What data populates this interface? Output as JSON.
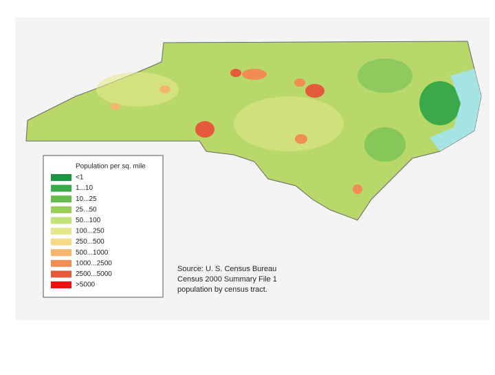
{
  "legend": {
    "title": "Population per sq. mile",
    "items": [
      {
        "label": "<1",
        "color": "#1a9641"
      },
      {
        "label": "1...10",
        "color": "#3aa94a"
      },
      {
        "label": "10...25",
        "color": "#66bd4f"
      },
      {
        "label": "25...50",
        "color": "#97cf57"
      },
      {
        "label": "50...100",
        "color": "#c4e27a"
      },
      {
        "label": "100...250",
        "color": "#e6e88e"
      },
      {
        "label": "250...500",
        "color": "#f7d98a"
      },
      {
        "label": "500...1000",
        "color": "#f6b46c"
      },
      {
        "label": "1000...2500",
        "color": "#f08c54"
      },
      {
        "label": "2500...5000",
        "color": "#e45a3a"
      },
      {
        "label": ">5000",
        "color": "#f01010"
      }
    ]
  },
  "source": {
    "lines": [
      "Source: U. S. Census Bureau",
      "Census 2000 Summary File 1",
      "population by census tract."
    ]
  }
}
